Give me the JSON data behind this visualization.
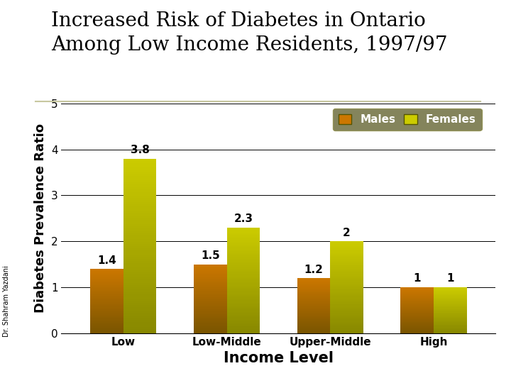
{
  "title_line1": "Increased Risk of Diabetes in Ontario",
  "title_line2": "Among Low Income Residents, 1997/97",
  "categories": [
    "Low",
    "Low-Middle",
    "Upper-Middle",
    "High"
  ],
  "males_values": [
    1.4,
    1.5,
    1.2,
    1.0
  ],
  "females_values": [
    3.8,
    2.3,
    2.0,
    1.0
  ],
  "males_label": "Males",
  "females_label": "Females",
  "ylabel": "Diabetes Prevalence Ratio",
  "xlabel": "Income Level",
  "ylim": [
    0,
    5
  ],
  "yticks": [
    0,
    1,
    2,
    3,
    4,
    5
  ],
  "males_color": "#CC7700",
  "females_color": "#CCCC00",
  "males_color_dark": "#7A5500",
  "females_color_dark": "#888800",
  "bg_color": "#FFFFFF",
  "legend_bg": "#666633",
  "legend_border": "#888844",
  "bar_width": 0.32,
  "author": "Dr. Shahram Yazdani",
  "title_fontsize": 20,
  "axis_label_fontsize": 13,
  "tick_fontsize": 11,
  "value_fontsize": 11,
  "legend_fontsize": 11
}
